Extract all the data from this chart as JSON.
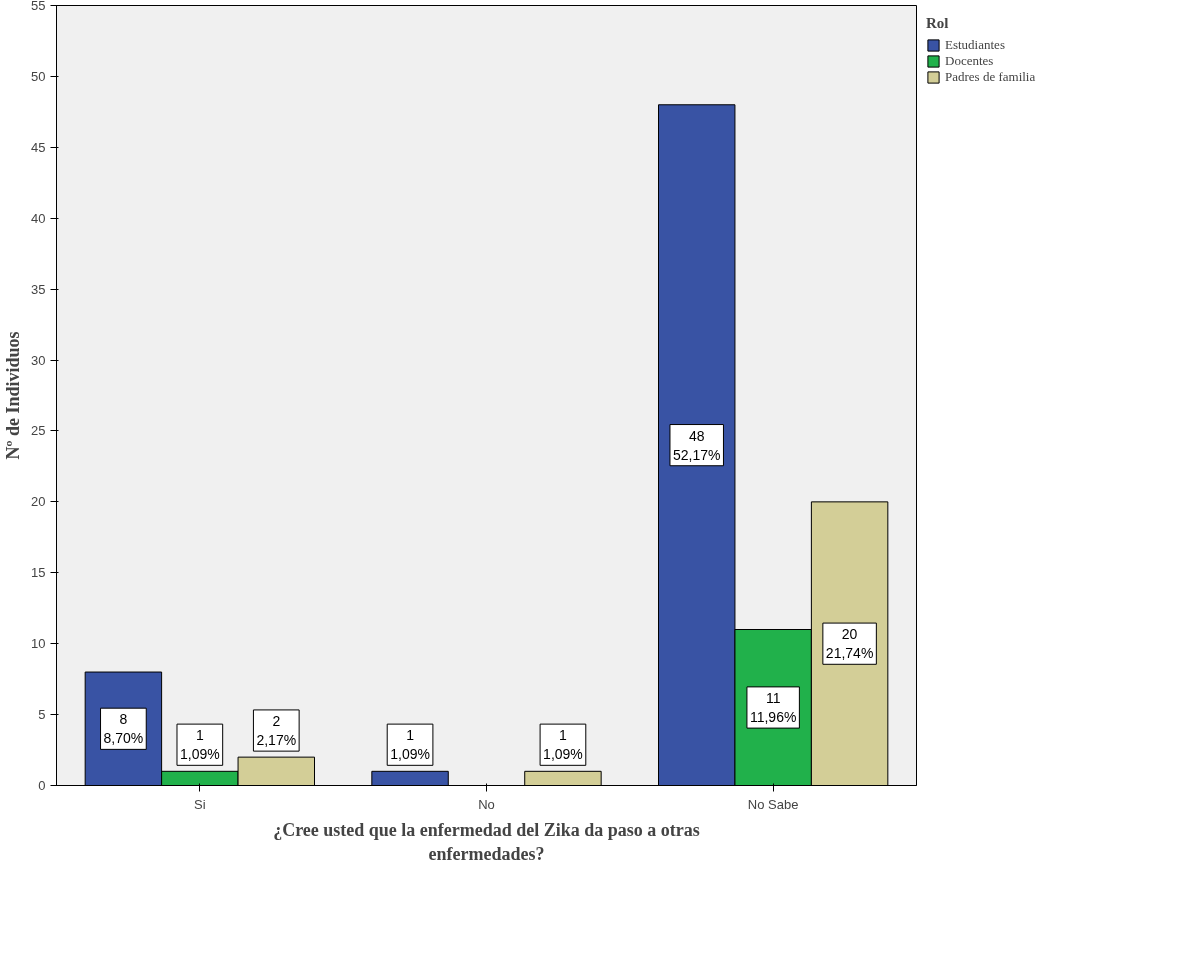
{
  "chart_data": {
    "type": "bar",
    "xlabel": "¿Cree usted que la enfermedad del Zika da paso a otras enfermedades?",
    "ylabel": "Nº de Individuos",
    "legend_title": "Rol",
    "legend": "top right",
    "grid": false,
    "categories": [
      "Si",
      "No",
      "No Sabe"
    ],
    "ylim": [
      0,
      55
    ],
    "yticks": [
      0,
      5,
      10,
      15,
      20,
      25,
      30,
      35,
      40,
      45,
      50,
      55
    ],
    "series": [
      {
        "name": "Estudiantes",
        "color": "#3953a4",
        "values": [
          8,
          1,
          48
        ],
        "value_labels": [
          "8\n8,70%",
          "1\n1,09%",
          "48\n52,17%"
        ]
      },
      {
        "name": "Docentes",
        "color": "#21b14b",
        "values": [
          1,
          null,
          11
        ],
        "value_labels": [
          "1\n1,09%",
          null,
          "11\n11,96%"
        ]
      },
      {
        "name": "Padres de familia",
        "color": "#d3ce97",
        "values": [
          2,
          1,
          20
        ],
        "value_labels": [
          "2\n2,17%",
          "1\n1,09%",
          "20\n21,74%"
        ]
      }
    ]
  }
}
